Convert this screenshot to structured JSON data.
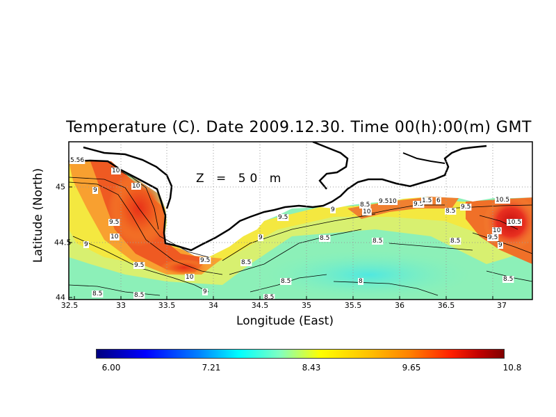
{
  "title": "Temperature (C). Date 2009.12.30. Time 00(h):00(m) GMT",
  "depth_label": "Z = 50 m",
  "x_axis": {
    "label": "Longitude (East)",
    "ticks": [
      "32.5",
      "33",
      "33.5",
      "34",
      "34.5",
      "35",
      "35.5",
      "36",
      "36.5",
      "37"
    ]
  },
  "y_axis": {
    "label": "Latitude (North)",
    "ticks": [
      "44",
      "44.5",
      "45"
    ]
  },
  "colorbar": {
    "labels": [
      "6.00",
      "7.21",
      "8.43",
      "9.65",
      "10.8"
    ],
    "min": 6.0,
    "max": 10.8
  },
  "contour_labels": [
    "5.56",
    "10",
    "9",
    "10",
    "9.5",
    "10",
    "9",
    "9.5",
    "9.5",
    "10",
    "9",
    "8.5",
    "8.5",
    "9.5",
    "9",
    "8.5",
    "8.5",
    "8.5",
    "8",
    "8.5",
    "9",
    "10",
    "8.5",
    "9.510",
    "9.5",
    "1.5",
    "6",
    "8.5",
    "9.5",
    "10.5",
    "10.5",
    "10",
    "9.5",
    "9",
    "8.5",
    "8.5",
    "8.5"
  ],
  "colors": {
    "land": "#ffffff",
    "coast": "#000000",
    "grid": "#9a9a9a"
  }
}
